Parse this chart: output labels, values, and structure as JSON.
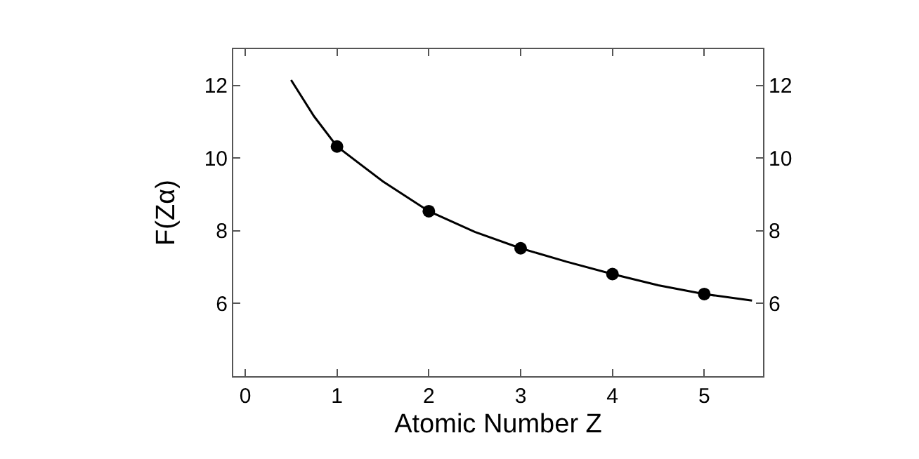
{
  "chart_data": {
    "type": "scatter",
    "xlabel": "Atomic Number Z",
    "ylabel": "F(Zα)",
    "xlim": [
      -0.13,
      5.64
    ],
    "xticks": [
      0,
      1,
      2,
      3,
      4,
      5
    ],
    "ylim": [
      4.0,
      13.0
    ],
    "yticks": [
      6,
      8,
      10,
      12
    ],
    "y2lim": [
      4.0,
      13.0
    ],
    "y2ticks": [
      6,
      8,
      10,
      12
    ],
    "series": [
      {
        "type": "line",
        "color": "#000000",
        "marker": "none",
        "line_style": "solid",
        "x": [
          0.5,
          0.75,
          1,
          1.5,
          2,
          2.5,
          3,
          3.5,
          4,
          4.5,
          5,
          5.52
        ],
        "values": [
          12.15,
          11.15,
          10.32,
          9.36,
          8.54,
          7.97,
          7.52,
          7.15,
          6.81,
          6.5,
          6.26,
          6.08
        ]
      },
      {
        "color": "#000000",
        "marker": "circle",
        "x": [
          1,
          2,
          3,
          4,
          5
        ],
        "values": [
          10.32,
          8.54,
          7.52,
          6.81,
          6.26
        ]
      }
    ]
  }
}
